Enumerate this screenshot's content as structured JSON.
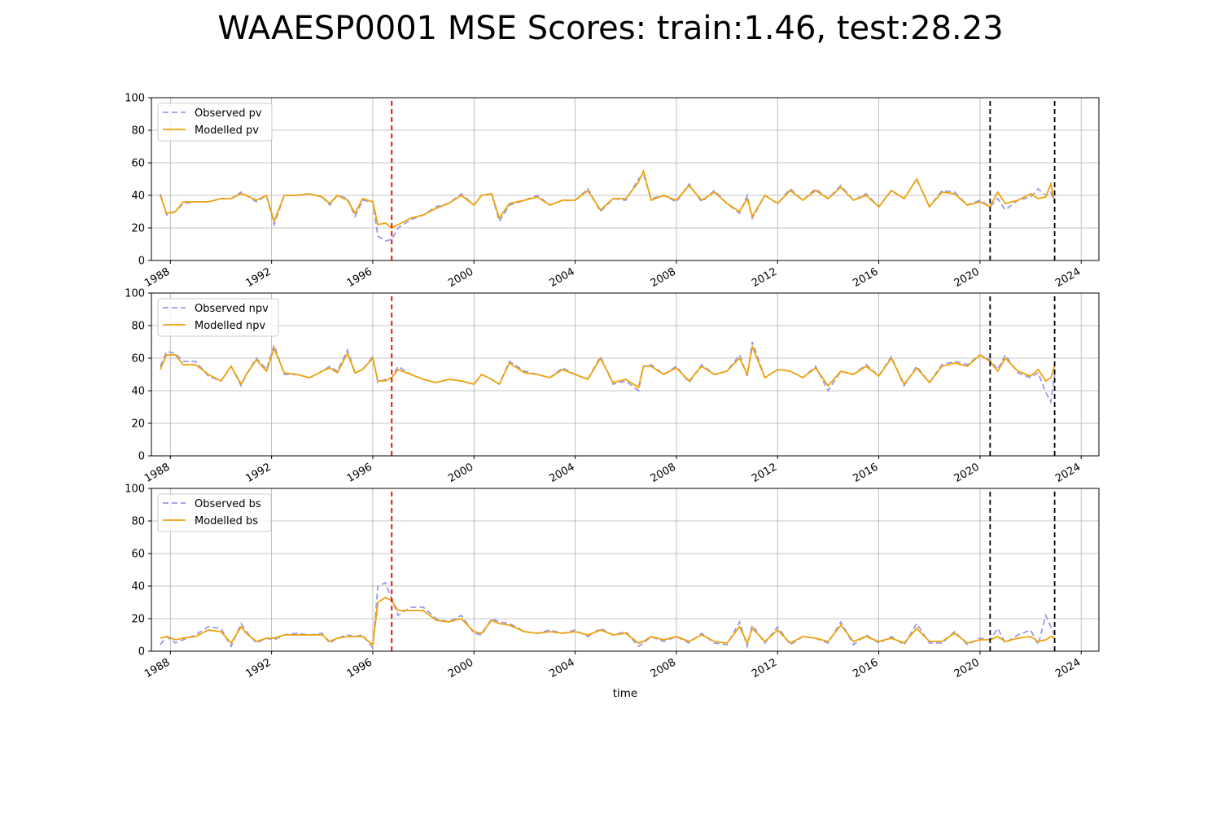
{
  "title": "WAAESP0001 MSE Scores: train:1.46, test:28.23",
  "chart_data": {
    "type": "line",
    "xlabel": "time",
    "xlim": [
      1987.25,
      2024.7
    ],
    "x_ticks": [
      "1988",
      "1992",
      "1996",
      "2000",
      "2004",
      "2008",
      "2012",
      "2016",
      "2020",
      "2024"
    ],
    "ylim": [
      0,
      100
    ],
    "y_ticks": [
      0,
      20,
      40,
      60,
      80,
      100
    ],
    "grid": true,
    "legend_position": "top-left",
    "observed_color": "#9999ee",
    "modelled_color": "#f0a30a",
    "markers": [
      {
        "x": 1996.75,
        "color": "#dd0000",
        "style": "dashed"
      },
      {
        "x": 2020.4,
        "color": "#000000",
        "style": "dashed"
      },
      {
        "x": 2022.95,
        "color": "#000000",
        "style": "dashed"
      }
    ],
    "panels": [
      {
        "name": "pv",
        "legend": [
          "Observed pv",
          "Modelled pv"
        ],
        "x": [
          1987.6,
          1987.85,
          1988.2,
          1988.5,
          1989,
          1989.5,
          1990,
          1990.4,
          1990.8,
          1991,
          1991.4,
          1991.8,
          1992.1,
          1992.5,
          1993,
          1993.5,
          1994,
          1994.3,
          1994.6,
          1995,
          1995.3,
          1995.6,
          1996,
          1996.2,
          1996.5,
          1996.75,
          1997,
          1997.5,
          1998,
          1998.5,
          1999,
          1999.5,
          2000,
          2000.3,
          2000.7,
          2001,
          2001.4,
          2002,
          2002.5,
          2003,
          2003.5,
          2004,
          2004.5,
          2005,
          2005.5,
          2006,
          2006.5,
          2006.7,
          2007,
          2007.5,
          2008,
          2008.5,
          2009,
          2009.5,
          2010,
          2010.5,
          2010.8,
          2011,
          2011.5,
          2012,
          2012.5,
          2013,
          2013.5,
          2014,
          2014.5,
          2015,
          2015.5,
          2016,
          2016.5,
          2017,
          2017.5,
          2018,
          2018.5,
          2019,
          2019.5,
          2020,
          2020.4,
          2020.7,
          2021,
          2021.5,
          2022,
          2022.3,
          2022.6,
          2022.8,
          2022.95
        ],
        "observed": [
          41,
          28,
          30,
          35,
          36,
          36,
          38,
          38,
          42,
          40,
          36,
          40,
          22,
          40,
          40,
          41,
          39,
          34,
          40,
          38,
          27,
          37,
          36,
          15,
          12,
          13,
          20,
          25,
          28,
          33,
          35,
          41,
          34,
          40,
          41,
          24,
          34,
          37,
          40,
          34,
          37,
          37,
          44,
          30,
          38,
          37,
          50,
          53,
          38,
          40,
          36,
          47,
          36,
          43,
          35,
          29,
          40,
          26,
          40,
          35,
          44,
          37,
          44,
          38,
          46,
          37,
          41,
          33,
          43,
          38,
          50,
          33,
          43,
          42,
          34,
          37,
          33,
          38,
          31,
          37,
          39,
          44,
          40,
          42,
          35
        ],
        "modelled": [
          40,
          29,
          30,
          36,
          36,
          36,
          38,
          38,
          41,
          40,
          37,
          40,
          24,
          40,
          40,
          41,
          39,
          35,
          40,
          37,
          29,
          38,
          36,
          22,
          23,
          20,
          22,
          26,
          28,
          32,
          35,
          40,
          34,
          40,
          41,
          26,
          35,
          37,
          39,
          34,
          37,
          37,
          43,
          31,
          38,
          38,
          48,
          55,
          37,
          40,
          37,
          46,
          37,
          42,
          35,
          30,
          38,
          27,
          40,
          35,
          43,
          37,
          43,
          38,
          45,
          37,
          40,
          33,
          43,
          38,
          50,
          33,
          42,
          41,
          34,
          36,
          33,
          42,
          35,
          37,
          41,
          38,
          39,
          47,
          36
        ]
      },
      {
        "name": "npv",
        "legend": [
          "Observed npv",
          "Modelled npv"
        ],
        "x": [
          1987.6,
          1987.85,
          1988.2,
          1988.5,
          1989,
          1989.5,
          1990,
          1990.4,
          1990.8,
          1991,
          1991.4,
          1991.8,
          1992.1,
          1992.5,
          1993,
          1993.5,
          1994,
          1994.3,
          1994.6,
          1995,
          1995.3,
          1995.6,
          1996,
          1996.2,
          1996.5,
          1996.75,
          1997,
          1997.5,
          1998,
          1998.5,
          1999,
          1999.5,
          2000,
          2000.3,
          2000.7,
          2001,
          2001.4,
          2002,
          2002.5,
          2003,
          2003.5,
          2004,
          2004.5,
          2005,
          2005.5,
          2006,
          2006.5,
          2006.7,
          2007,
          2007.5,
          2008,
          2008.5,
          2009,
          2009.5,
          2010,
          2010.5,
          2010.8,
          2011,
          2011.5,
          2012,
          2012.5,
          2013,
          2013.5,
          2014,
          2014.5,
          2015,
          2015.5,
          2016,
          2016.5,
          2017,
          2017.5,
          2018,
          2018.5,
          2019,
          2019.5,
          2020,
          2020.4,
          2020.7,
          2021,
          2021.5,
          2022,
          2022.3,
          2022.6,
          2022.8,
          2022.95
        ],
        "observed": [
          55,
          64,
          63,
          58,
          58,
          49,
          46,
          55,
          43,
          50,
          60,
          53,
          68,
          50,
          50,
          48,
          52,
          55,
          52,
          65,
          51,
          53,
          61,
          45,
          47,
          48,
          55,
          50,
          47,
          45,
          47,
          46,
          44,
          50,
          47,
          44,
          58,
          52,
          50,
          48,
          54,
          50,
          47,
          61,
          44,
          46,
          40,
          55,
          56,
          50,
          55,
          45,
          56,
          50,
          52,
          62,
          49,
          70,
          48,
          53,
          52,
          48,
          55,
          40,
          52,
          50,
          56,
          49,
          61,
          43,
          55,
          45,
          56,
          58,
          56,
          62,
          59,
          53,
          62,
          51,
          48,
          51,
          39,
          33,
          50
        ],
        "modelled": [
          53,
          62,
          62,
          56,
          56,
          50,
          46,
          55,
          44,
          50,
          59,
          52,
          66,
          51,
          50,
          48,
          52,
          54,
          51,
          63,
          51,
          53,
          60,
          46,
          46,
          48,
          53,
          50,
          47,
          45,
          47,
          46,
          44,
          50,
          47,
          44,
          57,
          51,
          50,
          48,
          53,
          50,
          47,
          60,
          45,
          47,
          42,
          55,
          55,
          50,
          54,
          46,
          55,
          50,
          52,
          60,
          50,
          67,
          48,
          53,
          52,
          48,
          54,
          43,
          52,
          50,
          55,
          49,
          60,
          44,
          54,
          45,
          55,
          57,
          55,
          62,
          58,
          52,
          60,
          52,
          49,
          53,
          46,
          48,
          55
        ]
      },
      {
        "name": "bs",
        "legend": [
          "Observed bs",
          "Modelled bs"
        ],
        "x": [
          1987.6,
          1987.85,
          1988.2,
          1988.5,
          1989,
          1989.5,
          1990,
          1990.4,
          1990.8,
          1991,
          1991.4,
          1991.8,
          1992.1,
          1992.5,
          1993,
          1993.5,
          1994,
          1994.3,
          1994.6,
          1995,
          1995.3,
          1995.6,
          1996,
          1996.2,
          1996.5,
          1996.75,
          1997,
          1997.5,
          1998,
          1998.5,
          1999,
          1999.5,
          2000,
          2000.3,
          2000.7,
          2001,
          2001.4,
          2002,
          2002.5,
          2003,
          2003.5,
          2004,
          2004.5,
          2005,
          2005.5,
          2006,
          2006.5,
          2006.7,
          2007,
          2007.5,
          2008,
          2008.5,
          2009,
          2009.5,
          2010,
          2010.5,
          2010.8,
          2011,
          2011.5,
          2012,
          2012.5,
          2013,
          2013.5,
          2014,
          2014.5,
          2015,
          2015.5,
          2016,
          2016.5,
          2017,
          2017.5,
          2018,
          2018.5,
          2019,
          2019.5,
          2020,
          2020.4,
          2020.7,
          2021,
          2021.5,
          2022,
          2022.3,
          2022.6,
          2022.8,
          2022.95
        ],
        "observed": [
          4,
          9,
          5,
          7,
          10,
          15,
          14,
          3,
          17,
          12,
          5,
          8,
          7,
          10,
          11,
          10,
          11,
          5,
          8,
          10,
          9,
          10,
          2,
          40,
          42,
          32,
          22,
          27,
          27,
          20,
          18,
          22,
          11,
          10,
          20,
          18,
          17,
          12,
          11,
          13,
          11,
          13,
          9,
          14,
          10,
          12,
          3,
          5,
          9,
          6,
          9,
          5,
          11,
          5,
          4,
          18,
          3,
          16,
          5,
          15,
          4,
          9,
          8,
          5,
          18,
          4,
          10,
          5,
          9,
          4,
          17,
          5,
          5,
          12,
          4,
          8,
          7,
          14,
          5,
          10,
          13,
          4,
          22,
          15,
          10
        ],
        "modelled": [
          8,
          9,
          7,
          8,
          9,
          13,
          12,
          5,
          15,
          11,
          6,
          8,
          8,
          10,
          10,
          10,
          10,
          6,
          8,
          9,
          9,
          9,
          4,
          30,
          33,
          31,
          25,
          25,
          25,
          19,
          18,
          20,
          12,
          11,
          19,
          17,
          16,
          12,
          11,
          12,
          11,
          12,
          10,
          13,
          10,
          11,
          5,
          6,
          9,
          7,
          9,
          6,
          10,
          6,
          5,
          15,
          5,
          14,
          6,
          13,
          5,
          9,
          8,
          6,
          16,
          6,
          9,
          6,
          8,
          5,
          14,
          6,
          6,
          11,
          5,
          7,
          7,
          9,
          6,
          8,
          9,
          6,
          7,
          9,
          8
        ]
      }
    ]
  }
}
